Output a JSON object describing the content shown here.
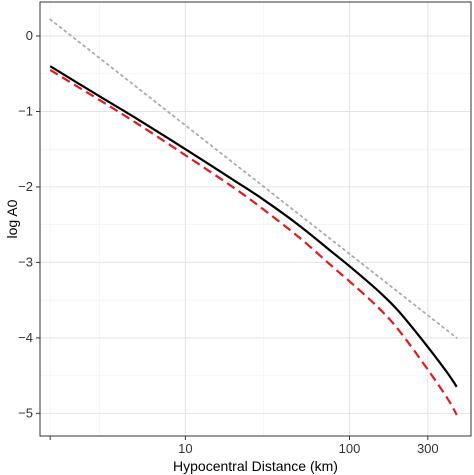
{
  "chart_data": {
    "type": "line",
    "title": "",
    "xlabel": "Hypocentral Distance (km)",
    "ylabel": "log A0",
    "xscale": "log",
    "xlim": [
      1.3,
      550
    ],
    "ylim": [
      -5.3,
      0.45
    ],
    "grid": true,
    "legend": "none",
    "x_ticks": [
      {
        "value": 10,
        "label": "10"
      },
      {
        "value": 100,
        "label": "100"
      },
      {
        "value": 300,
        "label": "300"
      }
    ],
    "y_ticks": [
      {
        "value": 0,
        "label": "0"
      },
      {
        "value": -1,
        "label": "−1"
      },
      {
        "value": -2,
        "label": "−2"
      },
      {
        "value": -3,
        "label": "−3"
      },
      {
        "value": -4,
        "label": "−4"
      },
      {
        "value": -5,
        "label": "−5"
      }
    ],
    "series": [
      {
        "style": "solid",
        "color": "#000000",
        "x": [
          1.5,
          3,
          5,
          10,
          20,
          30,
          50,
          80,
          100,
          150,
          200,
          300,
          400,
          450
        ],
        "y": [
          -0.4,
          -0.8,
          -1.09,
          -1.5,
          -1.92,
          -2.17,
          -2.52,
          -2.88,
          -3.05,
          -3.38,
          -3.65,
          -4.12,
          -4.48,
          -4.65
        ]
      },
      {
        "style": "dashed",
        "color": "#e31a1c",
        "x": [
          1.5,
          3,
          5,
          10,
          20,
          30,
          50,
          80,
          100,
          150,
          200,
          300,
          400,
          450
        ],
        "y": [
          -0.45,
          -0.85,
          -1.15,
          -1.58,
          -2.02,
          -2.3,
          -2.68,
          -3.07,
          -3.25,
          -3.6,
          -3.9,
          -4.42,
          -4.82,
          -5.02
        ]
      },
      {
        "style": "dotted",
        "color": "#aaaaaa",
        "x": [
          1.5,
          450
        ],
        "y": [
          0.22,
          -4.0
        ]
      }
    ]
  }
}
